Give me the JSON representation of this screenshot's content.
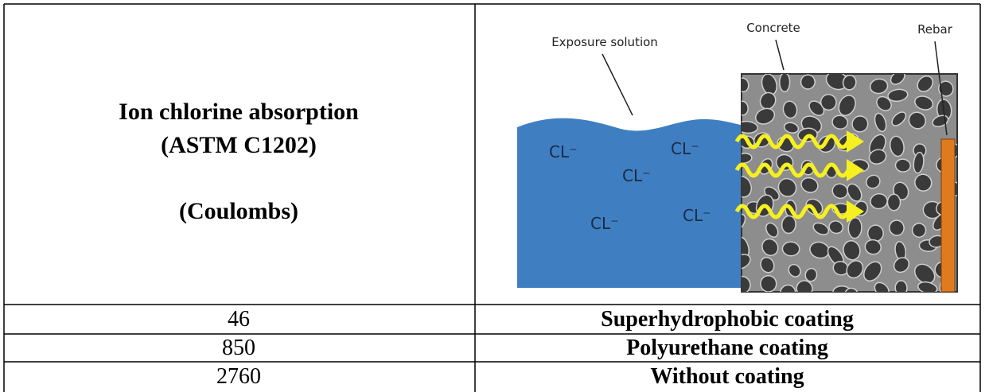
{
  "table": {
    "header": {
      "label": [
        "Ion chlorine absorption",
        "(ASTM C1202)",
        "(Coulombs)"
      ],
      "figure": {
        "solution": "Exposure solution",
        "concrete": "Concrete",
        "rebar": "Rebar",
        "ions": [
          "CL⁻",
          "CL⁻",
          "CL⁻",
          "CL⁻",
          "CL⁻"
        ]
      }
    },
    "rows": [
      [
        46,
        "Superhydrophobic coating"
      ],
      [
        850,
        "Polyurethane coating"
      ],
      [
        2760,
        "Without coating"
      ]
    ]
  }
}
